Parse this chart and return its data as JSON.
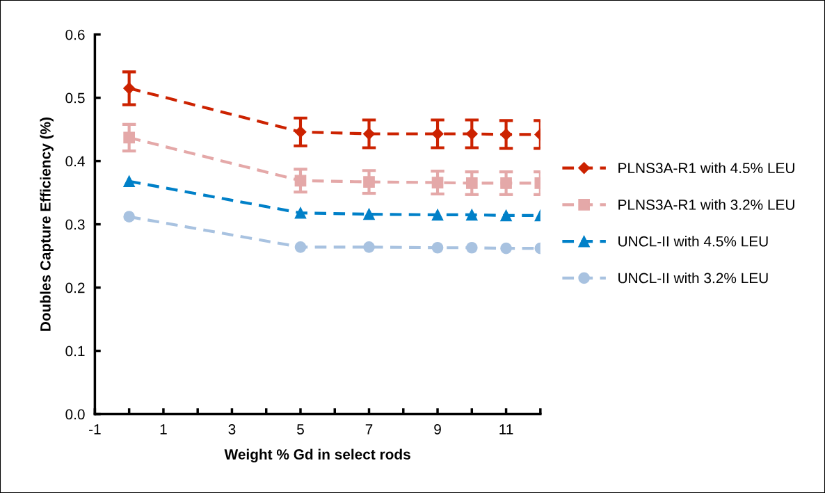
{
  "chart_data": {
    "type": "line",
    "xlabel": "Weight % Gd in select rods",
    "ylabel": "Doubles Capture Efficiency (%)",
    "xlim": [
      -1,
      12
    ],
    "ylim": [
      0,
      0.6
    ],
    "xticks": [
      {
        "value": -1,
        "label": "-1"
      },
      {
        "value": 0,
        "label": null
      },
      1,
      {
        "value": 2,
        "label": null
      },
      3,
      {
        "value": 4,
        "label": null
      },
      5,
      {
        "value": 6,
        "label": null
      },
      7,
      {
        "value": 8,
        "label": null
      },
      9,
      {
        "value": 10,
        "label": null
      },
      11,
      {
        "value": 12,
        "label": null
      }
    ],
    "yticks": [
      {
        "value": 0,
        "label": "0.0"
      },
      {
        "value": 0.1,
        "label": "0.1"
      },
      {
        "value": 0.2,
        "label": "0.2"
      },
      {
        "value": 0.3,
        "label": "0.3"
      },
      {
        "value": 0.4,
        "label": "0.4"
      },
      {
        "value": 0.5,
        "label": "0.5"
      },
      {
        "value": 0.6,
        "label": "0.6"
      }
    ],
    "x": [
      0,
      5,
      7,
      9,
      10,
      11,
      12
    ],
    "line_style": "dashed",
    "legend": "right",
    "grid": false,
    "series": [
      {
        "name": "PLNS3A-R1 with 4.5% LEU",
        "color": "#cc2200",
        "marker": "diamond",
        "values": [
          0.515,
          0.446,
          0.443,
          0.443,
          0.443,
          0.442,
          0.442
        ],
        "errors": [
          0.026,
          0.022,
          0.022,
          0.022,
          0.022,
          0.022,
          0.022
        ]
      },
      {
        "name": "PLNS3A-R1 with 3.2% LEU",
        "color": "#e4a8a8",
        "marker": "square",
        "values": [
          0.437,
          0.369,
          0.367,
          0.366,
          0.365,
          0.365,
          0.365
        ],
        "errors": [
          0.021,
          0.018,
          0.018,
          0.018,
          0.018,
          0.018,
          0.018
        ]
      },
      {
        "name": "UNCL-II with 4.5% LEU",
        "color": "#0080c8",
        "marker": "triangle",
        "values": [
          0.368,
          0.318,
          0.316,
          0.315,
          0.315,
          0.314,
          0.314
        ]
      },
      {
        "name": "UNCL-II with 3.2% LEU",
        "color": "#a8c2e0",
        "marker": "circle",
        "values": [
          0.312,
          0.264,
          0.264,
          0.263,
          0.263,
          0.262,
          0.262
        ]
      }
    ]
  }
}
